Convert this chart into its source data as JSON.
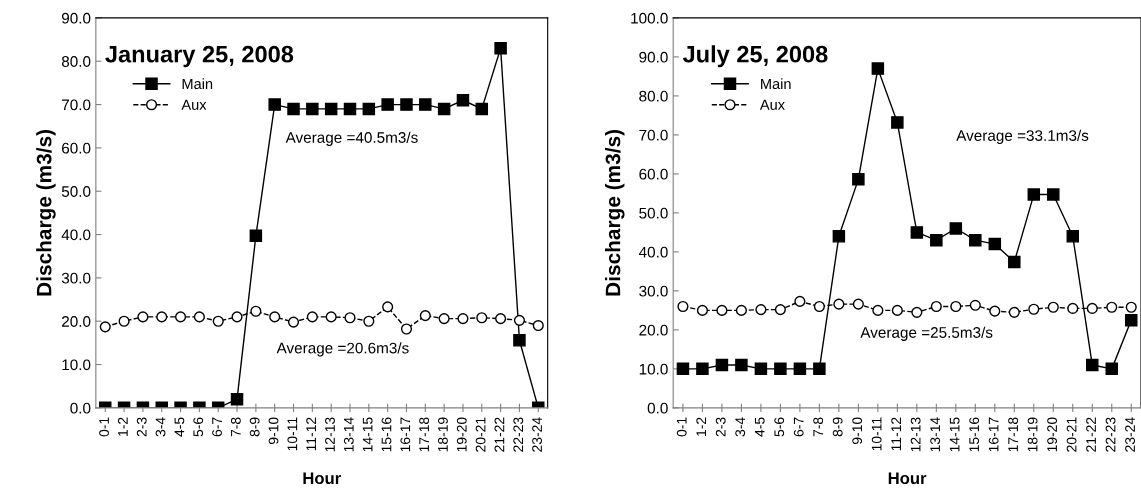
{
  "chart_data": [
    {
      "type": "line",
      "title": "January 25, 2008",
      "xlabel": "Hour",
      "ylabel": "Discharge (m3/s)",
      "categories": [
        "0-1",
        "1-2",
        "2-3",
        "3-4",
        "4-5",
        "5-6",
        "6-7",
        "7-8",
        "8-9",
        "9-10",
        "10-11",
        "11-12",
        "12-13",
        "13-14",
        "14-15",
        "15-16",
        "16-17",
        "17-18",
        "18-19",
        "19-20",
        "20-21",
        "21-22",
        "22-23",
        "23-24"
      ],
      "series": [
        {
          "name": "Main",
          "color": "#000000",
          "marker": "square",
          "line_style": "solid",
          "values": [
            0,
            0,
            0,
            0,
            0,
            0,
            0,
            2,
            39.7,
            70,
            69,
            69,
            69,
            69,
            69,
            70,
            70,
            70,
            69,
            71,
            69,
            83,
            15.6,
            0
          ]
        },
        {
          "name": "Aux",
          "color": "#000000",
          "marker": "circle",
          "line_style": "dashed",
          "values": [
            18.7,
            20,
            21,
            21,
            21,
            21,
            20,
            21,
            22.3,
            21,
            19.8,
            21,
            21,
            20.8,
            20,
            23.3,
            18.2,
            21.3,
            20.6,
            20.6,
            20.8,
            20.6,
            20.2,
            19
          ]
        }
      ],
      "ylim": [
        0,
        90
      ],
      "yticks": [
        {
          "value": 0,
          "label": "0.0"
        },
        {
          "value": 10,
          "label": "10.0"
        },
        {
          "value": 20,
          "label": "20.0"
        },
        {
          "value": 30,
          "label": "30.0"
        },
        {
          "value": 40,
          "label": "40.0"
        },
        {
          "value": 50,
          "label": "50.0"
        },
        {
          "value": 60,
          "label": "60.0"
        },
        {
          "value": 70,
          "label": "70.0"
        },
        {
          "value": 80,
          "label": "80.0"
        },
        {
          "value": 90,
          "label": "90.0"
        }
      ],
      "annotations": [
        "Average =40.5m3/s",
        "Average =20.6m3/s"
      ],
      "legend": "top left",
      "grid": false
    },
    {
      "type": "line",
      "title": "July 25, 2008",
      "xlabel": "Hour",
      "ylabel": "Discharge (m3/s)",
      "categories": [
        "0-1",
        "1-2",
        "2-3",
        "3-4",
        "4-5",
        "5-6",
        "6-7",
        "7-8",
        "8-9",
        "9-10",
        "10-11",
        "11-12",
        "12-13",
        "13-14",
        "14-15",
        "15-16",
        "16-17",
        "17-18",
        "18-19",
        "19-20",
        "20-21",
        "21-22",
        "22-23",
        "23-24"
      ],
      "series": [
        {
          "name": "Main",
          "color": "#000000",
          "marker": "square",
          "line_style": "solid",
          "values": [
            10,
            10,
            11,
            11,
            10,
            10,
            10,
            10,
            44,
            58.6,
            87,
            73.2,
            45,
            43,
            46,
            43,
            42,
            37.4,
            54.7,
            54.7,
            44,
            11,
            10,
            22.5
          ]
        },
        {
          "name": "Aux",
          "color": "#000000",
          "marker": "circle",
          "line_style": "dashed",
          "values": [
            26,
            25,
            25,
            25,
            25.2,
            25.2,
            27.3,
            26,
            26.6,
            26.6,
            25,
            25,
            24.5,
            26,
            26,
            26.3,
            24.8,
            24.5,
            25.3,
            25.8,
            25.5,
            25.5,
            25.8,
            25.8
          ]
        }
      ],
      "ylim": [
        0,
        100
      ],
      "yticks": [
        {
          "value": 0,
          "label": "0.0"
        },
        {
          "value": 10,
          "label": "10.0"
        },
        {
          "value": 20,
          "label": "20.0"
        },
        {
          "value": 30,
          "label": "30.0"
        },
        {
          "value": 40,
          "label": "40.0"
        },
        {
          "value": 50,
          "label": "50.0"
        },
        {
          "value": 60,
          "label": "60.0"
        },
        {
          "value": 70,
          "label": "70.0"
        },
        {
          "value": 80,
          "label": "80.0"
        },
        {
          "value": 90,
          "label": "90.0"
        },
        {
          "value": 100,
          "label": "100.0"
        }
      ],
      "annotations": [
        "Average =33.1m3/s",
        "Average =25.5m3/s"
      ],
      "legend": "top left",
      "grid": false
    }
  ]
}
